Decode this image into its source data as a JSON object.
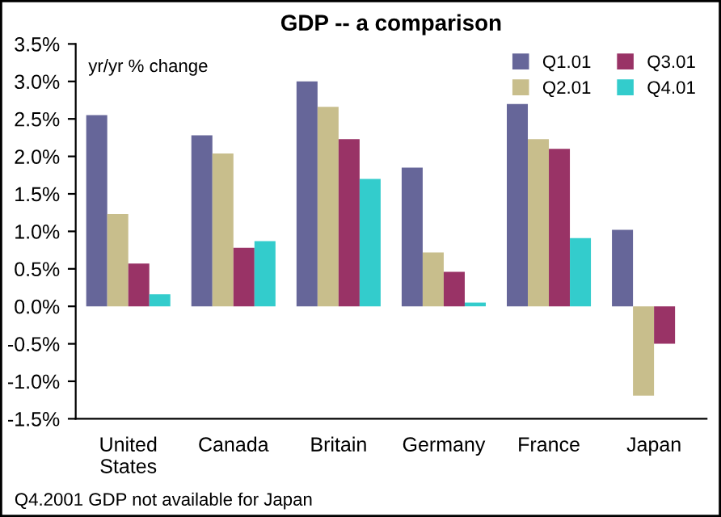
{
  "chart_data": {
    "type": "bar",
    "title": "GDP -- a comparison",
    "categories": [
      "United\nStates",
      "Canada",
      "Britain",
      "Germany",
      "France",
      "Japan"
    ],
    "series": [
      {
        "name": "Q1.01",
        "color": "#666699",
        "values": [
          2.55,
          2.28,
          3.0,
          1.85,
          2.7,
          1.02
        ]
      },
      {
        "name": "Q2.01",
        "color": "#c8be8c",
        "values": [
          1.23,
          2.04,
          2.66,
          0.72,
          2.23,
          -1.19
        ]
      },
      {
        "name": "Q3.01",
        "color": "#993366",
        "values": [
          0.57,
          0.78,
          2.23,
          0.46,
          2.1,
          -0.5
        ]
      },
      {
        "name": "Q4.01",
        "color": "#33cccc",
        "values": [
          0.16,
          0.87,
          1.7,
          0.05,
          0.91,
          null
        ]
      }
    ],
    "ylim": [
      -1.5,
      3.5
    ],
    "yticks": [
      {
        "value": -1.5,
        "label": "-1.5%"
      },
      {
        "value": -1.0,
        "label": "-1.0%"
      },
      {
        "value": -0.5,
        "label": "-0.5%"
      },
      {
        "value": 0.0,
        "label": "0.0%"
      },
      {
        "value": 0.5,
        "label": "0.5%"
      },
      {
        "value": 1.0,
        "label": "1.0%"
      },
      {
        "value": 1.5,
        "label": "1.5%"
      },
      {
        "value": 2.0,
        "label": "2.0%"
      },
      {
        "value": 2.5,
        "label": "2.5%"
      },
      {
        "value": 3.0,
        "label": "3.0%"
      },
      {
        "value": 3.5,
        "label": "3.5%"
      }
    ],
    "annotations": [
      "yr/yr % change",
      "Q4.2001 GDP not available for Japan"
    ],
    "legend": "top right",
    "grid": false
  }
}
